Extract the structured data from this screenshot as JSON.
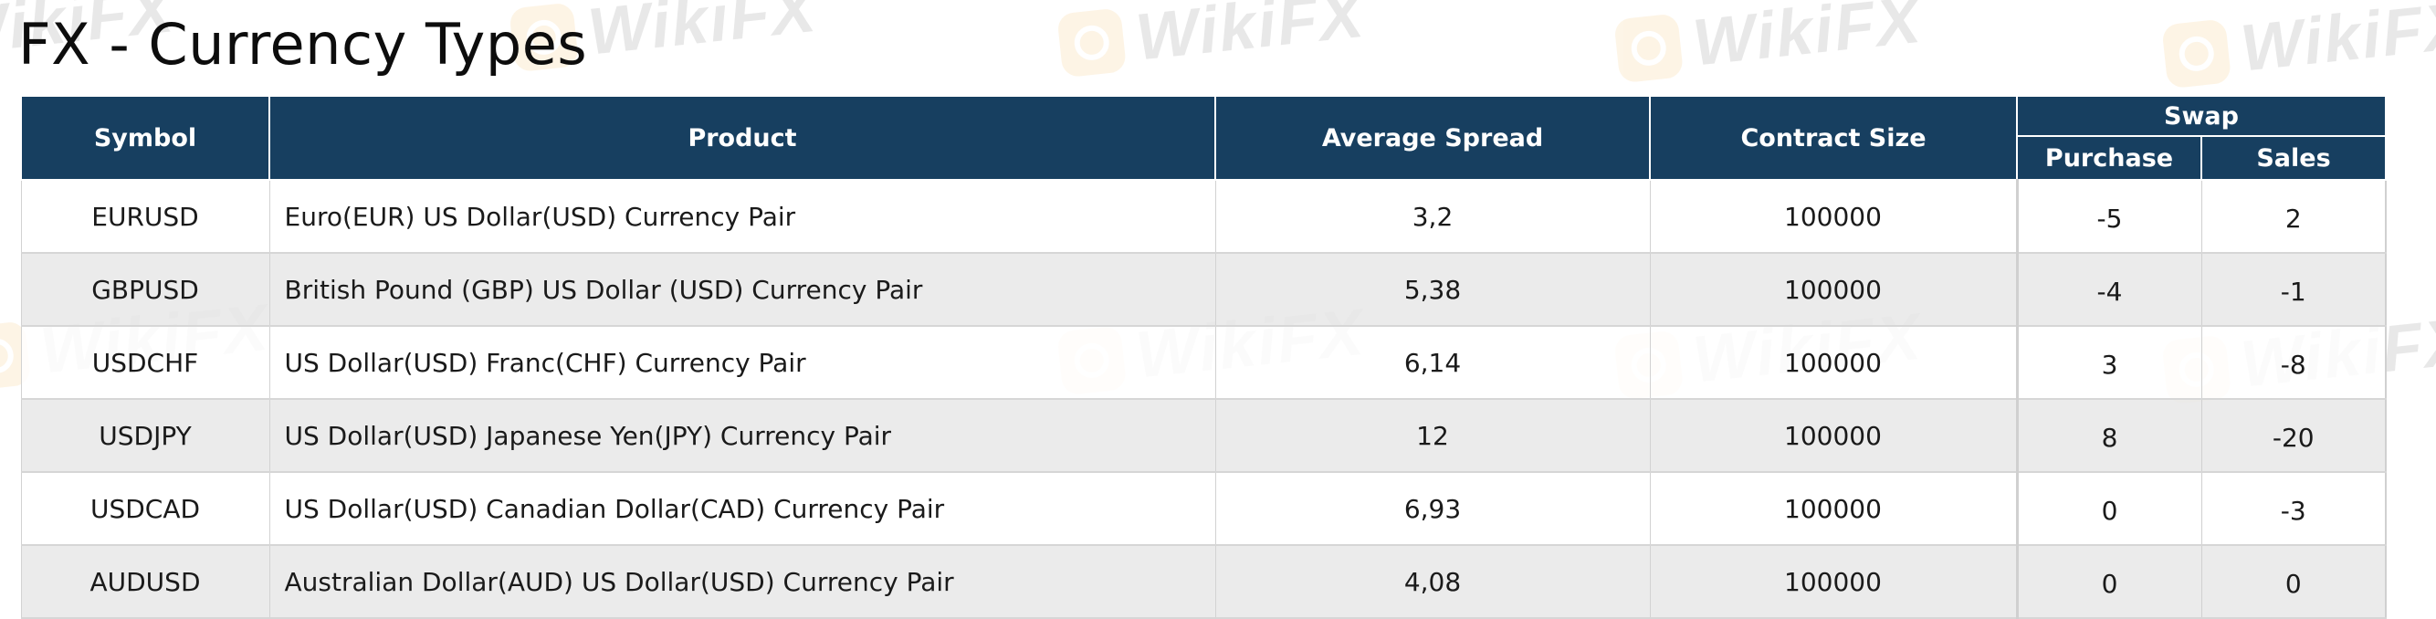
{
  "page": {
    "title": "FX - Currency Types",
    "watermark_text": "WikiFX"
  },
  "table": {
    "headers": {
      "symbol": "Symbol",
      "product": "Product",
      "average_spread": "Average Spread",
      "contract_size": "Contract Size",
      "swap": "Swap",
      "swap_purchase": "Purchase",
      "swap_sales": "Sales"
    },
    "rows": [
      {
        "symbol": "EURUSD",
        "product": "Euro(EUR) US Dollar(USD) Currency Pair",
        "average_spread": "3,2",
        "contract_size": "100000",
        "purchase": "-5",
        "sales": "2"
      },
      {
        "symbol": "GBPUSD",
        "product": "British Pound (GBP) US Dollar (USD) Currency Pair",
        "average_spread": "5,38",
        "contract_size": "100000",
        "purchase": "-4",
        "sales": "-1"
      },
      {
        "symbol": "USDCHF",
        "product": "US Dollar(USD) Franc(CHF) Currency Pair",
        "average_spread": "6,14",
        "contract_size": "100000",
        "purchase": "3",
        "sales": "-8"
      },
      {
        "symbol": "USDJPY",
        "product": "US Dollar(USD) Japanese Yen(JPY) Currency Pair",
        "average_spread": "12",
        "contract_size": "100000",
        "purchase": "8",
        "sales": "-20"
      },
      {
        "symbol": "USDCAD",
        "product": "US Dollar(USD) Canadian Dollar(CAD) Currency Pair",
        "average_spread": "6,93",
        "contract_size": "100000",
        "purchase": "0",
        "sales": "-3"
      },
      {
        "symbol": "AUDUSD",
        "product": "Australian Dollar(AUD) US Dollar(USD) Currency Pair",
        "average_spread": "4,08",
        "contract_size": "100000",
        "purchase": "0",
        "sales": "0"
      }
    ]
  },
  "colors": {
    "header_bg": "#173f60",
    "header_text": "#ffffff",
    "row_alt_bg": "#e8e8e8",
    "watermark_logo": "#f0a020"
  }
}
